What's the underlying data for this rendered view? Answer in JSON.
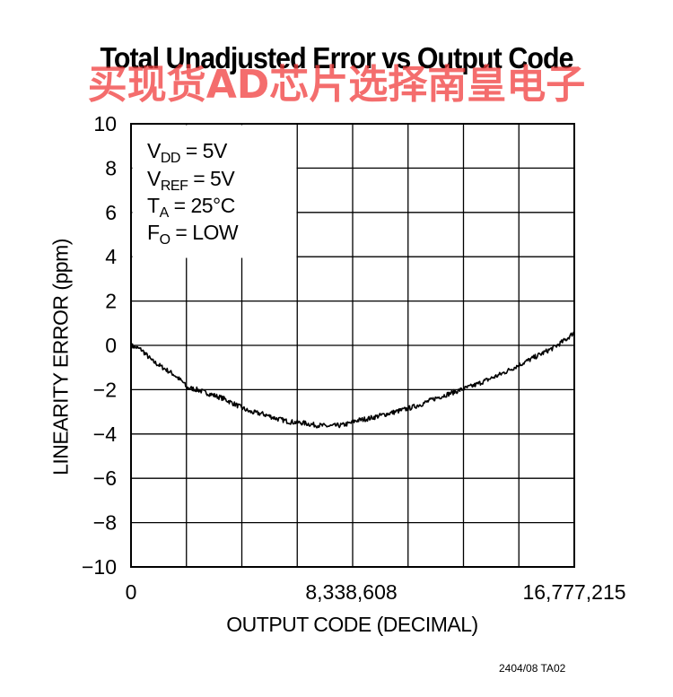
{
  "chart_data": {
    "type": "line",
    "title": "Total Unadjusted Error vs Output Code",
    "xlabel": "OUTPUT CODE (DECIMAL)",
    "ylabel": "LINEARITY ERROR (ppm)",
    "xlim": [
      0,
      16777215
    ],
    "ylim": [
      -10,
      10
    ],
    "x_ticks": [
      0,
      8338608,
      16777215
    ],
    "x_tick_labels": [
      "0",
      "8,338,608",
      "16,777,215"
    ],
    "y_ticks": [
      10,
      8,
      6,
      4,
      2,
      0,
      -2,
      -4,
      -6,
      -8,
      -10
    ],
    "y_tick_labels": [
      "10",
      "8",
      "6",
      "4",
      "2",
      "0",
      "−2",
      "−4",
      "−6",
      "−8",
      "−10"
    ],
    "grid": true,
    "annotations": [
      {
        "main": "V",
        "sub": "DD",
        "rest": " = 5V"
      },
      {
        "main": "V",
        "sub": "REF",
        "rest": " = 5V"
      },
      {
        "main": "T",
        "sub": "A",
        "rest": " = 25°C"
      },
      {
        "main": "F",
        "sub": "O",
        "rest": " = LOW"
      }
    ],
    "series": [
      {
        "x": [
          0,
          400000,
          800000,
          1200000,
          1600000,
          2000000,
          2100000,
          2500000,
          3000000,
          3500000,
          4000000,
          4500000,
          5000000,
          5500000,
          6000000,
          6500000,
          7000000,
          7500000,
          8000000,
          8338608,
          8500000,
          9000000,
          9500000,
          10000000,
          10500000,
          11000000,
          11500000,
          12000000,
          12500000,
          13000000,
          13500000,
          14000000,
          14500000,
          15000000,
          15500000,
          16000000,
          16500000,
          16777215
        ],
        "y": [
          0,
          -0.2,
          -0.7,
          -1.0,
          -1.3,
          -1.7,
          -1.9,
          -2.0,
          -2.2,
          -2.4,
          -2.7,
          -3.0,
          -3.1,
          -3.3,
          -3.45,
          -3.5,
          -3.6,
          -3.65,
          -3.6,
          -3.5,
          -3.4,
          -3.3,
          -3.15,
          -3.0,
          -2.85,
          -2.65,
          -2.4,
          -2.2,
          -2.0,
          -1.8,
          -1.55,
          -1.3,
          -1.0,
          -0.7,
          -0.4,
          -0.1,
          0.3,
          0.6
        ]
      }
    ]
  },
  "watermark": "买现货AD芯片选择南皇电子",
  "footnote": "2404/08 TA02",
  "colors": {
    "line": "#000000",
    "grid": "#000000",
    "watermark": "#f03c3c"
  }
}
